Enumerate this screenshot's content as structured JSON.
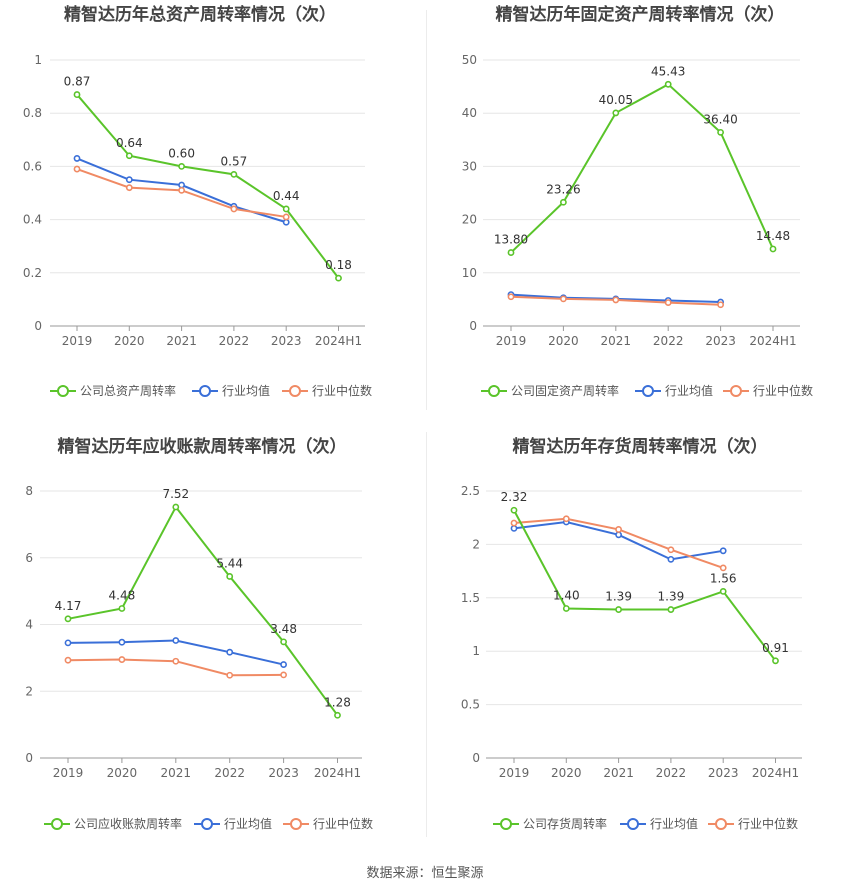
{
  "source_text": "数据来源：恒生聚源",
  "colors": {
    "company": "#5ac42a",
    "mean": "#3a6fd8",
    "median": "#f08a64",
    "grid": "#e6e6e6",
    "axis": "#999999",
    "title": "#444444",
    "label": "#333333"
  },
  "chart_data": [
    {
      "id": "total-asset",
      "type": "line",
      "title": "精智达历年总资产周转率情况（次）",
      "categories": [
        "2019",
        "2020",
        "2021",
        "2022",
        "2023",
        "2024H1"
      ],
      "ylim": [
        0,
        1
      ],
      "yticks": [
        0,
        0.2,
        0.4,
        0.6,
        0.8,
        1
      ],
      "ytick_labels": [
        "0",
        "0.2",
        "0.4",
        "0.6",
        "0.8",
        "1"
      ],
      "grid": true,
      "legend_position": "bottom",
      "series": [
        {
          "name": "公司总资产周转率",
          "role": "company",
          "values": [
            0.87,
            0.64,
            0.6,
            0.57,
            0.44,
            0.18
          ],
          "labels": [
            "0.87",
            "0.64",
            "0.60",
            "0.57",
            "0.44",
            "0.18"
          ]
        },
        {
          "name": "行业均值",
          "role": "mean",
          "values": [
            0.63,
            0.55,
            0.53,
            0.45,
            0.39,
            null
          ]
        },
        {
          "name": "行业中位数",
          "role": "median",
          "values": [
            0.59,
            0.52,
            0.51,
            0.44,
            0.41,
            null
          ]
        }
      ]
    },
    {
      "id": "fixed-asset",
      "type": "line",
      "title": "精智达历年固定资产周转率情况（次）",
      "categories": [
        "2019",
        "2020",
        "2021",
        "2022",
        "2023",
        "2024H1"
      ],
      "ylim": [
        0,
        50
      ],
      "yticks": [
        0,
        10,
        20,
        30,
        40,
        50
      ],
      "ytick_labels": [
        "0",
        "10",
        "20",
        "30",
        "40",
        "50"
      ],
      "grid": true,
      "legend_position": "bottom",
      "series": [
        {
          "name": "公司固定资产周转率",
          "role": "company",
          "values": [
            13.8,
            23.26,
            40.05,
            45.43,
            36.4,
            14.48
          ],
          "labels": [
            "13.80",
            "23.26",
            "40.05",
            "45.43",
            "36.40",
            "14.48"
          ]
        },
        {
          "name": "行业均值",
          "role": "mean",
          "values": [
            5.9,
            5.3,
            5.1,
            4.8,
            4.5,
            null
          ]
        },
        {
          "name": "行业中位数",
          "role": "median",
          "values": [
            5.5,
            5.1,
            4.9,
            4.4,
            4.0,
            null
          ]
        }
      ]
    },
    {
      "id": "receivable",
      "type": "line",
      "title": "精智达历年应收账款周转率情况（次）",
      "categories": [
        "2019",
        "2020",
        "2021",
        "2022",
        "2023",
        "2024H1"
      ],
      "ylim": [
        0,
        8
      ],
      "yticks": [
        0,
        2,
        4,
        6,
        8
      ],
      "ytick_labels": [
        "0",
        "2",
        "4",
        "6",
        "8"
      ],
      "grid": true,
      "legend_position": "bottom",
      "series": [
        {
          "name": "公司应收账款周转率",
          "role": "company",
          "values": [
            4.17,
            4.48,
            7.52,
            5.44,
            3.48,
            1.28
          ],
          "labels": [
            "4.17",
            "4.48",
            "7.52",
            "5.44",
            "3.48",
            "1.28"
          ]
        },
        {
          "name": "行业均值",
          "role": "mean",
          "values": [
            3.45,
            3.47,
            3.52,
            3.17,
            2.8,
            null
          ]
        },
        {
          "name": "行业中位数",
          "role": "median",
          "values": [
            2.93,
            2.95,
            2.9,
            2.48,
            2.49,
            null
          ]
        }
      ]
    },
    {
      "id": "inventory",
      "type": "line",
      "title": "精智达历年存货周转率情况（次）",
      "categories": [
        "2019",
        "2020",
        "2021",
        "2022",
        "2023",
        "2024H1"
      ],
      "ylim": [
        0,
        2.5
      ],
      "yticks": [
        0,
        0.5,
        1,
        1.5,
        2,
        2.5
      ],
      "ytick_labels": [
        "0",
        "0.5",
        "1",
        "1.5",
        "2",
        "2.5"
      ],
      "grid": true,
      "legend_position": "bottom",
      "series": [
        {
          "name": "公司存货周转率",
          "role": "company",
          "values": [
            2.32,
            1.4,
            1.39,
            1.39,
            1.56,
            0.91
          ],
          "labels": [
            "2.32",
            "1.40",
            "1.39",
            "1.39",
            "1.56",
            "0.91"
          ]
        },
        {
          "name": "行业均值",
          "role": "mean",
          "values": [
            2.15,
            2.21,
            2.09,
            1.86,
            1.94,
            null
          ]
        },
        {
          "name": "行业中位数",
          "role": "median",
          "values": [
            2.2,
            2.24,
            2.14,
            1.95,
            1.78,
            null
          ]
        }
      ]
    }
  ]
}
